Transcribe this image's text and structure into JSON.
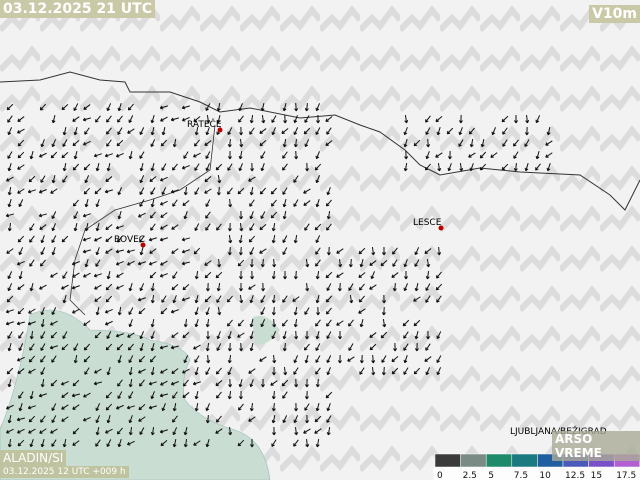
{
  "header": {
    "time": "03.12.2025 21 UTC",
    "field": "V10m"
  },
  "places": [
    {
      "label": "RATEČE"
    },
    {
      "label": "BOVEC"
    },
    {
      "label": "LESCE"
    },
    {
      "label": "LJUBLJANA/BEŽIGRAD"
    }
  ],
  "branding": {
    "model": "ALADIN/SI",
    "run": "03.12.2025 12 UTC +009 h",
    "logo": "ARSO VREME"
  },
  "legend": {
    "labels": [
      0,
      2.5,
      5,
      7.5,
      10,
      12.5,
      15,
      17.5
    ],
    "colors": [
      "#3a3a3a",
      "#7a8a84",
      "#1f8a6a",
      "#1a7a80",
      "#1f5fa0",
      "#4a5ab8",
      "#7a50c8",
      "#b060d0"
    ]
  }
}
